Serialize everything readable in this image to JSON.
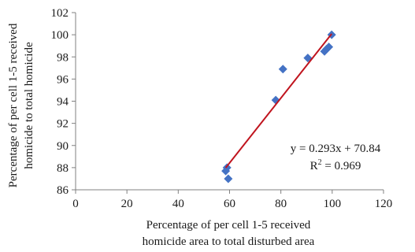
{
  "chart_data": {
    "type": "scatter",
    "title": "",
    "xlabel": [
      "Percentage of per cell 1-5 received",
      "homicide area to total disturbed area"
    ],
    "ylabel": [
      "Percentage of per cell 1-5 received",
      "homicide to total homicide"
    ],
    "xlim": [
      0,
      120
    ],
    "ylim": [
      86,
      102
    ],
    "x_ticks": [
      "0",
      "20",
      "40",
      "60",
      "80",
      "100",
      "120"
    ],
    "y_ticks": [
      "86",
      "88",
      "90",
      "92",
      "94",
      "96",
      "98",
      "100",
      "102"
    ],
    "grid": false,
    "legend": "none",
    "series": [
      {
        "marker_color": "#4472C4",
        "points": [
          {
            "x": 58.5,
            "y": 87.7
          },
          {
            "x": 59.0,
            "y": 88.0
          },
          {
            "x": 59.5,
            "y": 87.0
          },
          {
            "x": 78.0,
            "y": 94.1
          },
          {
            "x": 80.8,
            "y": 96.9
          },
          {
            "x": 90.5,
            "y": 97.9
          },
          {
            "x": 97.0,
            "y": 98.5
          },
          {
            "x": 97.8,
            "y": 98.7
          },
          {
            "x": 98.7,
            "y": 98.9
          },
          {
            "x": 99.8,
            "y": 100.0
          }
        ]
      }
    ],
    "trendline": {
      "color": "#C0141E",
      "x_range": [
        58.5,
        99.8
      ],
      "slope": 0.293,
      "intercept": 70.84
    },
    "annotations": {
      "equation": "y = 0.293x + 70.84",
      "r2_label": "R",
      "r2_sup": "2",
      "r2_value": " = 0.969"
    }
  }
}
